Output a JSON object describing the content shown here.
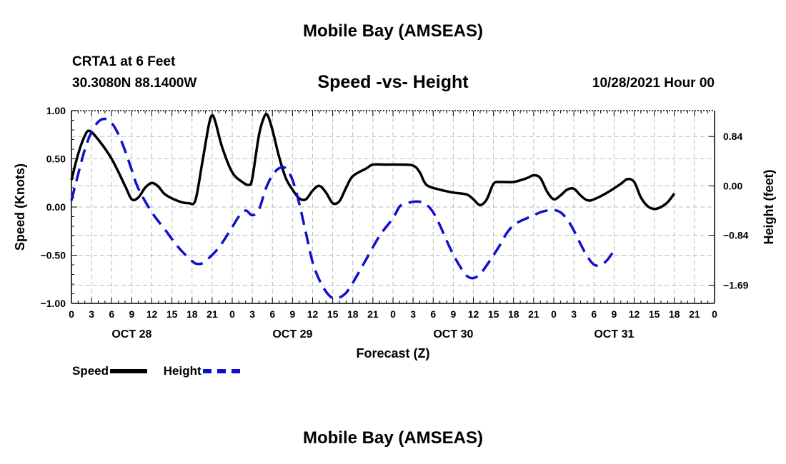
{
  "header": {
    "title": "Mobile Bay (AMSEAS)",
    "station": "CRTA1 at 6 Feet",
    "coords": "30.3080N  88.1400W",
    "subtitle": "Speed -vs- Height",
    "timestamp": "10/28/2021 Hour 00"
  },
  "footer": {
    "title": "Mobile Bay (AMSEAS)"
  },
  "legend": {
    "speed_label": "Speed",
    "height_label": "Height"
  },
  "chart_data": {
    "type": "line",
    "title": "Speed -vs- Height",
    "xlabel": "Forecast (Z)",
    "ylabel_left": "Speed (Knots)",
    "ylabel_right": "Height (feet)",
    "x_hour_range": [
      0,
      96
    ],
    "x_tick_labels": [
      "0",
      "3",
      "6",
      "9",
      "12",
      "15",
      "18",
      "21",
      "0",
      "3",
      "6",
      "9",
      "12",
      "15",
      "18",
      "21",
      "0",
      "3",
      "6",
      "9",
      "12",
      "15",
      "18",
      "21",
      "0",
      "3",
      "6",
      "9",
      "12",
      "15",
      "18",
      "21",
      "0"
    ],
    "day_labels": [
      {
        "hour": 9,
        "label": "OCT 28"
      },
      {
        "hour": 33,
        "label": "OCT 29"
      },
      {
        "hour": 57,
        "label": "OCT 30"
      },
      {
        "hour": 81,
        "label": "OCT 31"
      }
    ],
    "y_left": {
      "range": [
        -1.0,
        1.0
      ],
      "ticks": [
        "-1.00",
        "-0.50",
        "0.00",
        "0.50",
        "1.00"
      ],
      "tick_values": [
        -1.0,
        -0.5,
        0.0,
        0.5,
        1.0
      ]
    },
    "y_right": {
      "range": [
        -2.0,
        1.28
      ],
      "ticks": [
        "-1.69",
        "-0.84",
        "0.00",
        "0.84"
      ],
      "tick_values": [
        -1.69,
        -0.84,
        0.0,
        0.84
      ]
    },
    "grid": true,
    "legend_position": "bottom-left",
    "colors": {
      "speed": "#000000",
      "height": "#1010cc",
      "grid": "#bbbbbb"
    },
    "series": [
      {
        "name": "Speed",
        "axis": "left",
        "style": "solid",
        "points": [
          [
            0,
            0.28
          ],
          [
            1,
            0.55
          ],
          [
            2,
            0.74
          ],
          [
            2.7,
            0.79
          ],
          [
            4,
            0.7
          ],
          [
            6,
            0.5
          ],
          [
            8,
            0.22
          ],
          [
            9,
            0.08
          ],
          [
            10,
            0.1
          ],
          [
            11,
            0.2
          ],
          [
            12,
            0.25
          ],
          [
            13,
            0.21
          ],
          [
            14,
            0.13
          ],
          [
            16,
            0.06
          ],
          [
            17.5,
            0.04
          ],
          [
            18.5,
            0.07
          ],
          [
            19.5,
            0.45
          ],
          [
            20.5,
            0.85
          ],
          [
            21,
            0.95
          ],
          [
            21.5,
            0.88
          ],
          [
            22.5,
            0.62
          ],
          [
            24,
            0.36
          ],
          [
            25.5,
            0.26
          ],
          [
            26.5,
            0.23
          ],
          [
            27,
            0.3
          ],
          [
            28,
            0.75
          ],
          [
            28.8,
            0.94
          ],
          [
            29.3,
            0.95
          ],
          [
            30,
            0.8
          ],
          [
            31,
            0.52
          ],
          [
            32,
            0.3
          ],
          [
            33,
            0.18
          ],
          [
            34,
            0.09
          ],
          [
            35,
            0.08
          ],
          [
            36,
            0.17
          ],
          [
            37,
            0.22
          ],
          [
            38,
            0.15
          ],
          [
            39,
            0.04
          ],
          [
            40,
            0.06
          ],
          [
            41,
            0.2
          ],
          [
            42,
            0.32
          ],
          [
            44,
            0.4
          ],
          [
            45,
            0.44
          ],
          [
            47,
            0.44
          ],
          [
            49,
            0.44
          ],
          [
            51,
            0.43
          ],
          [
            52,
            0.36
          ],
          [
            53,
            0.23
          ],
          [
            55,
            0.18
          ],
          [
            57,
            0.15
          ],
          [
            59,
            0.13
          ],
          [
            60,
            0.08
          ],
          [
            61,
            0.02
          ],
          [
            62,
            0.08
          ],
          [
            63,
            0.24
          ],
          [
            64,
            0.26
          ],
          [
            66,
            0.26
          ],
          [
            68,
            0.3
          ],
          [
            69,
            0.33
          ],
          [
            70,
            0.3
          ],
          [
            71,
            0.16
          ],
          [
            72,
            0.08
          ],
          [
            73,
            0.12
          ],
          [
            74,
            0.18
          ],
          [
            75,
            0.19
          ],
          [
            76,
            0.12
          ],
          [
            77,
            0.07
          ],
          [
            78,
            0.08
          ],
          [
            80,
            0.15
          ],
          [
            82,
            0.24
          ],
          [
            83,
            0.29
          ],
          [
            84,
            0.26
          ],
          [
            85,
            0.1
          ],
          [
            86,
            0.01
          ],
          [
            87,
            -0.02
          ],
          [
            88,
            0.0
          ],
          [
            89,
            0.05
          ],
          [
            90,
            0.14
          ]
        ]
      },
      {
        "name": "Height",
        "axis": "right",
        "style": "dashed",
        "points": [
          [
            0,
            -0.25
          ],
          [
            1,
            0.2
          ],
          [
            2,
            0.62
          ],
          [
            3,
            0.92
          ],
          [
            4,
            1.09
          ],
          [
            5,
            1.14
          ],
          [
            6,
            1.07
          ],
          [
            7,
            0.88
          ],
          [
            8,
            0.6
          ],
          [
            9,
            0.27
          ],
          [
            10,
            -0.05
          ],
          [
            12,
            -0.45
          ],
          [
            14,
            -0.75
          ],
          [
            16,
            -1.05
          ],
          [
            18,
            -1.28
          ],
          [
            19,
            -1.33
          ],
          [
            20,
            -1.28
          ],
          [
            22,
            -1.05
          ],
          [
            24,
            -0.7
          ],
          [
            25,
            -0.52
          ],
          [
            26,
            -0.42
          ],
          [
            27,
            -0.5
          ],
          [
            28,
            -0.4
          ],
          [
            29,
            -0.05
          ],
          [
            30,
            0.18
          ],
          [
            31,
            0.3
          ],
          [
            32,
            0.3
          ],
          [
            33,
            0.1
          ],
          [
            34,
            -0.3
          ],
          [
            35,
            -0.8
          ],
          [
            36,
            -1.3
          ],
          [
            37,
            -1.6
          ],
          [
            38,
            -1.8
          ],
          [
            39,
            -1.91
          ],
          [
            40,
            -1.9
          ],
          [
            41,
            -1.82
          ],
          [
            42,
            -1.65
          ],
          [
            44,
            -1.25
          ],
          [
            46,
            -0.85
          ],
          [
            48,
            -0.55
          ],
          [
            49,
            -0.35
          ],
          [
            50,
            -0.3
          ],
          [
            51,
            -0.27
          ],
          [
            52,
            -0.27
          ],
          [
            53,
            -0.32
          ],
          [
            54,
            -0.45
          ],
          [
            55,
            -0.67
          ],
          [
            56,
            -0.93
          ],
          [
            57,
            -1.17
          ],
          [
            58,
            -1.37
          ],
          [
            59,
            -1.53
          ],
          [
            60,
            -1.57
          ],
          [
            61,
            -1.5
          ],
          [
            62,
            -1.35
          ],
          [
            63,
            -1.18
          ],
          [
            64,
            -1.0
          ],
          [
            65,
            -0.8
          ],
          [
            66,
            -0.67
          ],
          [
            67,
            -0.6
          ],
          [
            68,
            -0.55
          ],
          [
            69,
            -0.5
          ],
          [
            70,
            -0.45
          ],
          [
            71,
            -0.42
          ],
          [
            72,
            -0.41
          ],
          [
            73,
            -0.45
          ],
          [
            74,
            -0.57
          ],
          [
            75,
            -0.76
          ],
          [
            76,
            -0.99
          ],
          [
            77,
            -1.2
          ],
          [
            78,
            -1.34
          ],
          [
            79,
            -1.35
          ],
          [
            80,
            -1.26
          ],
          [
            81,
            -1.1
          ]
        ]
      }
    ]
  }
}
